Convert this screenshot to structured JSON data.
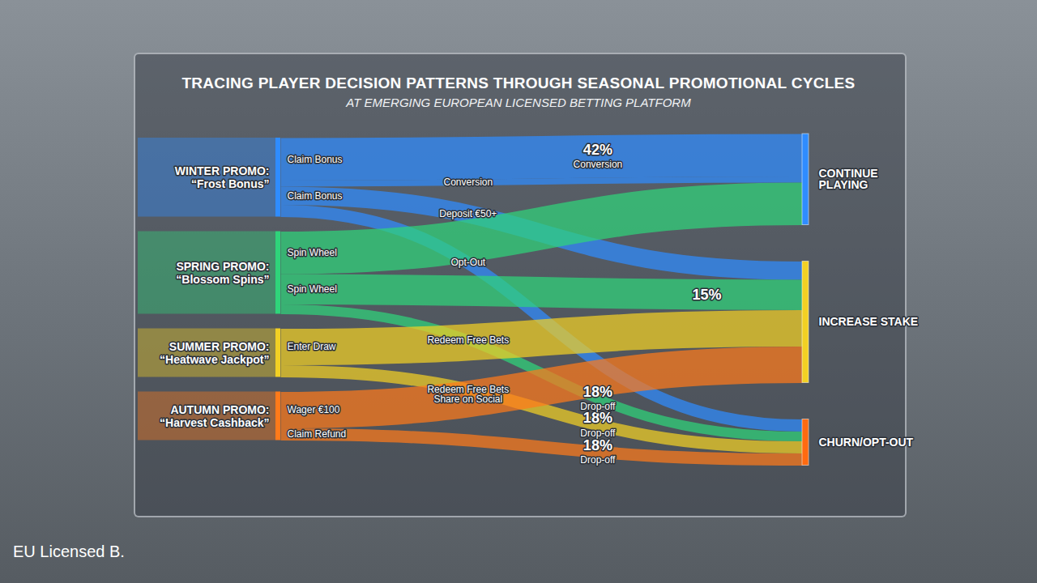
{
  "chart_data": {
    "type": "sankey",
    "title": "TRACING PLAYER DECISION PATTERNS THROUGH SEASONAL PROMOTIONAL CYCLES",
    "subtitle": "AT EMERGING EUROPEAN LICENSED BETTING PLATFORM",
    "sources": [
      {
        "name": "WINTER PROMO:",
        "label": "“Frost Bonus”",
        "color": "#2f8cff"
      },
      {
        "name": "SPRING PROMO:",
        "label": "“Blossom Spins”",
        "color": "#2fd47a"
      },
      {
        "name": "SUMMER PROMO:",
        "label": "“Heatwave Jackpot”",
        "color": "#f2d024"
      },
      {
        "name": "AUTUMN PROMO:",
        "label": "“Harvest Cashback”",
        "color": "#ff7a1a"
      }
    ],
    "targets": [
      {
        "name": "CONTINUE PLAYING",
        "color": "#2f8cff"
      },
      {
        "name": "INCREASE STAKE",
        "color": "#f2d024"
      },
      {
        "name": "CHURN/OPT-OUT",
        "color": "#ff6a10"
      }
    ],
    "links": [
      {
        "source": "WINTER PROMO:",
        "target": "CONTINUE PLAYING",
        "action": "Claim Bonus",
        "value": 35,
        "annotation": {
          "value": 42,
          "label": "42%",
          "text": "Conversion"
        }
      },
      {
        "source": "WINTER PROMO:",
        "target": "CONTINUE PLAYING",
        "step": "Conversion",
        "value": 5
      },
      {
        "source": "WINTER PROMO:",
        "target": "INCREASE STAKE",
        "action": "Claim Bonus",
        "step": "Deposit €50+",
        "value": 15
      },
      {
        "source": "WINTER PROMO:",
        "target": "CHURN/OPT-OUT",
        "step": "Opt-Out",
        "value": 10
      },
      {
        "source": "SPRING PROMO:",
        "target": "CONTINUE PLAYING",
        "action": "Spin Wheel",
        "value": 35
      },
      {
        "source": "SPRING PROMO:",
        "target": "INCREASE STAKE",
        "action": "Spin Wheel",
        "value": 25,
        "annotation": {
          "value": 15,
          "label": "15%"
        }
      },
      {
        "source": "SPRING PROMO:",
        "target": "CHURN/OPT-OUT",
        "step": "Redeem Free Bets",
        "value": 8,
        "annotation": {
          "value": 18,
          "label": "18%",
          "text": "Drop-off"
        }
      },
      {
        "source": "SUMMER PROMO:",
        "target": "INCREASE STAKE",
        "action": "Enter Draw",
        "value": 30
      },
      {
        "source": "SUMMER PROMO:",
        "target": "CHURN/OPT-OUT",
        "step": "Redeem Free Bets",
        "value": 10,
        "annotation": {
          "value": 18,
          "label": "18%",
          "text": "Drop-off"
        }
      },
      {
        "source": "AUTUMN PROMO:",
        "target": "INCREASE STAKE",
        "action": "Wager €100",
        "step": "Share on Social",
        "value": 30
      },
      {
        "source": "AUTUMN PROMO:",
        "target": "CHURN/OPT-OUT",
        "action": "Claim Refund",
        "value": 10,
        "annotation": {
          "value": 18,
          "label": "18%",
          "text": "Drop-off"
        }
      }
    ],
    "footer": "EU Licensed B."
  }
}
